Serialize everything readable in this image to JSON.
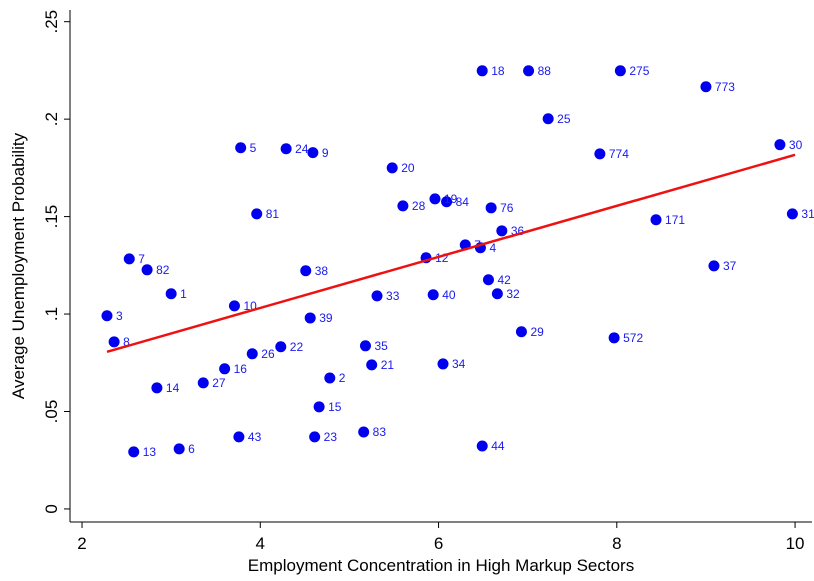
{
  "chart_data": {
    "type": "scatter",
    "x_label": "Employment Concentration in High Markup Sectors",
    "y_label": "Average Unemployment Probability",
    "color": "#0000ee",
    "fit_color": "#ee1111",
    "xlim": [
      1.865,
      10.19
    ],
    "ylim": [
      -0.0067,
      0.256
    ],
    "xticks": [
      2,
      4,
      6,
      8,
      10
    ],
    "yticks": [
      {
        "value": 0,
        "label": "0"
      },
      {
        "value": 0.05,
        "label": ".05"
      },
      {
        "value": 0.1,
        "label": ".1"
      },
      {
        "value": 0.15,
        "label": ".15"
      },
      {
        "value": 0.2,
        "label": ".2"
      },
      {
        "value": 0.25,
        "label": ".25"
      }
    ],
    "grid": false,
    "x": [
      6.49,
      7.01,
      8.04,
      9.0,
      7.23,
      9.83,
      9.97,
      7.81,
      3.78,
      4.29,
      4.59,
      5.48,
      3.96,
      5.6,
      5.96,
      6.09,
      6.59,
      8.44,
      6.71,
      2.53,
      2.73,
      5.86,
      6.3,
      6.47,
      4.51,
      9.09,
      6.56,
      2.28,
      3.0,
      3.71,
      5.31,
      5.94,
      6.66,
      6.93,
      7.97,
      2.36,
      4.56,
      5.18,
      3.91,
      4.23,
      5.25,
      6.05,
      3.6,
      4.78,
      3.36,
      2.84,
      4.66,
      3.76,
      4.61,
      5.16,
      6.49,
      2.58,
      3.09
    ],
    "y": [
      0.2248,
      0.2248,
      0.2248,
      0.2166,
      0.2002,
      0.1869,
      0.1514,
      0.1822,
      0.1853,
      0.1848,
      0.1828,
      0.175,
      0.1514,
      0.1555,
      0.1591,
      0.1576,
      0.1545,
      0.1484,
      0.1427,
      0.1283,
      0.1227,
      0.1289,
      0.1355,
      0.134,
      0.1222,
      0.1247,
      0.1176,
      0.0991,
      0.1104,
      0.1042,
      0.1093,
      0.1099,
      0.1104,
      0.0909,
      0.0878,
      0.0857,
      0.098,
      0.0837,
      0.0796,
      0.0832,
      0.0739,
      0.0744,
      0.0719,
      0.0672,
      0.0647,
      0.0621,
      0.0524,
      0.037,
      0.037,
      0.0395,
      0.0323,
      0.0293,
      0.0308
    ],
    "labels": [
      "18",
      "88",
      "275",
      "773",
      "25",
      "30",
      "31",
      "774",
      "5",
      "24",
      "9",
      "20",
      "81",
      "28",
      "19",
      "84",
      "76",
      "171",
      "36",
      "7",
      "82",
      "12",
      "7",
      "4",
      "38",
      "37",
      "42",
      "3",
      "1",
      "10",
      "33",
      "40",
      "32",
      "29",
      "572",
      "8",
      "39",
      "35",
      "26",
      "22",
      "21",
      "34",
      "16",
      "2",
      "27",
      "14",
      "15",
      "43",
      "23",
      "83",
      "44",
      "13",
      "6"
    ],
    "fit": {
      "x": [
        2.28,
        10
      ],
      "y": [
        0.0806,
        0.1817
      ]
    }
  }
}
